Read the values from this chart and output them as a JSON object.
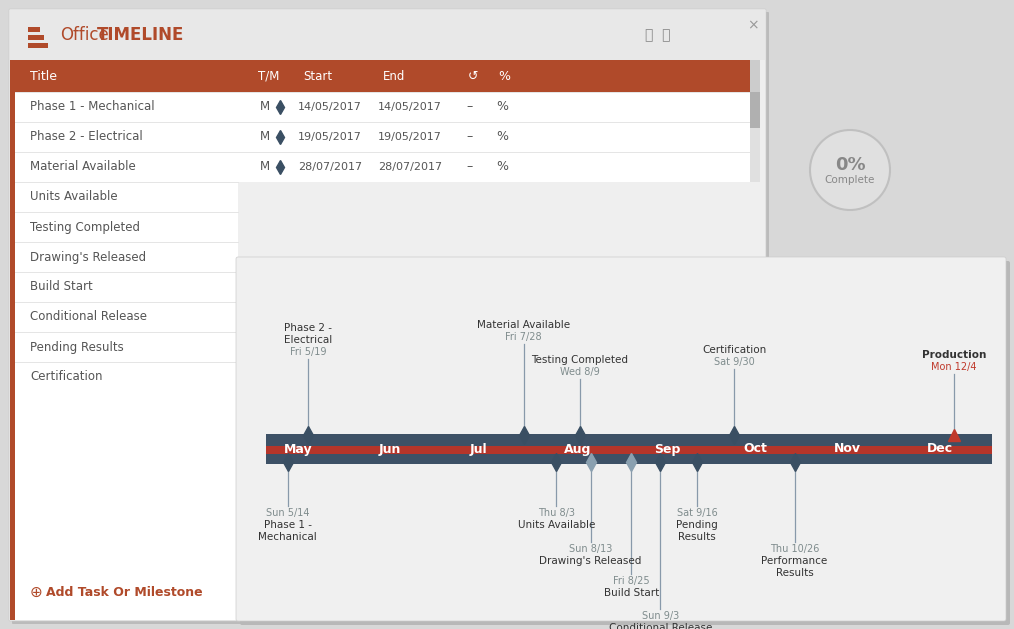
{
  "bg_color": "#d8d8d8",
  "window1_bg": "#efefef",
  "panel_bg": "#ffffff",
  "header_color": "#b04a2a",
  "title_color": "#b04a2a",
  "table_rows": [
    "Phase 1 - Mechanical",
    "Phase 2 - Electrical",
    "Material Available",
    "Units Available",
    "Testing Completed",
    "Drawing's Released",
    "Build Start",
    "Conditional Release",
    "Pending Results",
    "Certification"
  ],
  "milestone_top": [
    {
      "label": "Phase 2 -\nElectrical",
      "date": "Fri 5/19",
      "xf": 0.058,
      "color": "#3a4f63"
    },
    {
      "label": "Material Available",
      "date": "Fri 7/28",
      "xf": 0.355,
      "color": "#3a4f63"
    },
    {
      "label": "Testing Completed",
      "date": "Wed 8/9",
      "xf": 0.432,
      "color": "#3a4f63"
    },
    {
      "label": "Certification",
      "date": "Sat 9/30",
      "xf": 0.645,
      "color": "#3a4f63"
    },
    {
      "label": "Production",
      "date": "Mon 12/4",
      "xf": 0.948,
      "color": "#c0392b"
    }
  ],
  "milestone_bottom": [
    {
      "label": "Phase 1 -\nMechanical",
      "date": "Sun 5/14",
      "xf": 0.03,
      "color": "#3a4f63",
      "level": 1
    },
    {
      "label": "Units Available",
      "date": "Thu 8/3",
      "xf": 0.4,
      "color": "#3a4f63",
      "level": 1
    },
    {
      "label": "Drawing's Released",
      "date": "Sun 8/13",
      "xf": 0.447,
      "color": "#8aa0b0",
      "level": 2
    },
    {
      "label": "Build Start",
      "date": "Fri 8/25",
      "xf": 0.503,
      "color": "#8aa0b0",
      "level": 3
    },
    {
      "label": "Conditional Release",
      "date": "Sun 9/3",
      "xf": 0.543,
      "color": "#3a4f63",
      "level": 4
    },
    {
      "label": "Pending\nResults",
      "date": "Sat 9/16",
      "xf": 0.594,
      "color": "#3a4f63",
      "level": 1
    },
    {
      "label": "Performance\nResults",
      "date": "Thu 10/26",
      "xf": 0.728,
      "color": "#3a4f63",
      "level": 2
    }
  ],
  "months": [
    "May",
    "Jun",
    "Jul",
    "Aug",
    "Sep",
    "Oct",
    "Nov",
    "Dec"
  ],
  "month_xf": [
    0.025,
    0.155,
    0.28,
    0.41,
    0.535,
    0.658,
    0.782,
    0.91
  ],
  "timeline_bar_color": "#3d5166",
  "timeline_red": "#b5352a",
  "add_task_color": "#b04a2a",
  "percent_complete": "0",
  "row_dates": [
    [
      "14/05/2017",
      "14/05/2017"
    ],
    [
      "19/05/2017",
      "19/05/2017"
    ],
    [
      "28/07/2017",
      "28/07/2017"
    ]
  ]
}
